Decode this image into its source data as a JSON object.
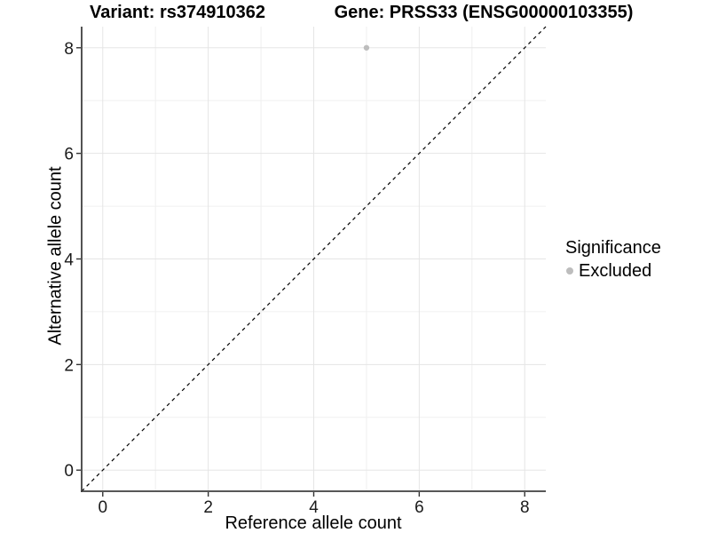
{
  "chart_data": {
    "type": "scatter",
    "title_left": "Variant: rs374910362",
    "title_right": "Gene: PRSS33 (ENSG00000103355)",
    "xlabel": "Reference allele count",
    "ylabel": "Alternative allele count",
    "xlim": [
      -0.4,
      8.4
    ],
    "ylim": [
      -0.4,
      8.4
    ],
    "xticks": [
      0,
      2,
      4,
      6,
      8
    ],
    "yticks": [
      0,
      2,
      4,
      6,
      8
    ],
    "grid": "major-and-minor, minor at midpoints (every 1 unit)",
    "identity_line": {
      "style": "dashed",
      "slope": 1,
      "intercept": 0
    },
    "series": [
      {
        "name": "Excluded",
        "points": [
          {
            "x": 5,
            "y": 8
          }
        ]
      }
    ],
    "legend": {
      "title": "Significance",
      "position": "right",
      "entries": [
        {
          "label": "Excluded",
          "color": "#bdbdbd"
        }
      ]
    },
    "colors": {
      "point": "#bdbdbd",
      "grid_major": "#e5e5e5",
      "grid_minor": "#f0f0f0",
      "axis_line": "#404040",
      "tick_mark": "#333333",
      "tick_label": "#1a1a1a",
      "identity_line": "#000000",
      "background": "#ffffff"
    }
  }
}
